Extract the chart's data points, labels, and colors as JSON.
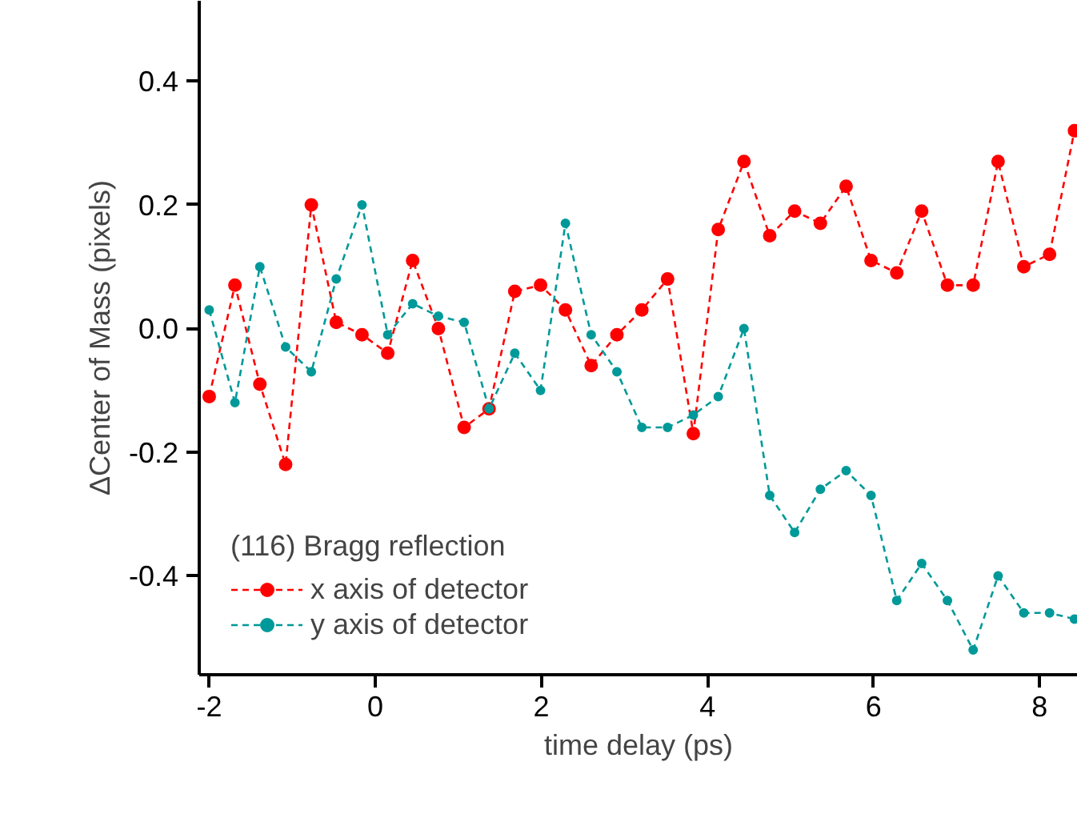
{
  "chart_data": {
    "type": "line",
    "xlabel": "time delay (ps)",
    "ylabel": "ΔCenter of Mass (pixels)",
    "legend_title": "(116) Bragg reflection",
    "x": [
      -2.0,
      -1.69,
      -1.39,
      -1.08,
      -0.77,
      -0.47,
      -0.16,
      0.15,
      0.45,
      0.76,
      1.07,
      1.37,
      1.68,
      1.99,
      2.29,
      2.6,
      2.91,
      3.21,
      3.52,
      3.83,
      4.13,
      4.44,
      4.75,
      5.05,
      5.36,
      5.67,
      5.97,
      6.28,
      6.58,
      6.89,
      7.2,
      7.5,
      7.81,
      8.12,
      8.42
    ],
    "series": [
      {
        "name": "x axis of detector",
        "color": "#ff0000",
        "values": [
          -0.11,
          0.07,
          -0.09,
          -0.22,
          0.2,
          0.01,
          -0.01,
          -0.04,
          0.11,
          0.0,
          -0.16,
          -0.13,
          0.06,
          0.07,
          0.03,
          -0.06,
          -0.01,
          0.03,
          0.08,
          -0.17,
          0.16,
          0.27,
          0.15,
          0.19,
          0.17,
          0.23,
          0.11,
          0.09,
          0.19,
          0.07,
          0.07,
          0.27,
          0.1,
          0.12,
          0.32
        ]
      },
      {
        "name": "y axis of detector",
        "color": "#009999",
        "values": [
          0.03,
          -0.12,
          0.1,
          -0.03,
          -0.07,
          0.08,
          0.2,
          -0.01,
          0.04,
          0.02,
          0.01,
          -0.13,
          -0.04,
          -0.1,
          0.17,
          -0.01,
          -0.07,
          -0.16,
          -0.16,
          -0.14,
          -0.11,
          0.0,
          -0.27,
          -0.33,
          -0.26,
          -0.23,
          -0.27,
          -0.44,
          -0.38,
          -0.44,
          -0.52,
          -0.4,
          -0.46,
          -0.46,
          -0.47
        ]
      }
    ],
    "xlim": [
      -2.12,
      8.46
    ],
    "ylim": [
      -0.56,
      0.53
    ],
    "xticks": [
      -2,
      0,
      2,
      4,
      6,
      8
    ],
    "yticks": [
      {
        "value": -0.4,
        "label": "-0.4"
      },
      {
        "value": -0.2,
        "label": "-0.2"
      },
      {
        "value": 0,
        "label": "0.0"
      },
      {
        "value": 0.2,
        "label": "0.2"
      },
      {
        "value": 0.4,
        "label": "0.4"
      }
    ],
    "grid": false,
    "legend": "bottom left",
    "marker": "circle",
    "line_style": "dashed"
  }
}
